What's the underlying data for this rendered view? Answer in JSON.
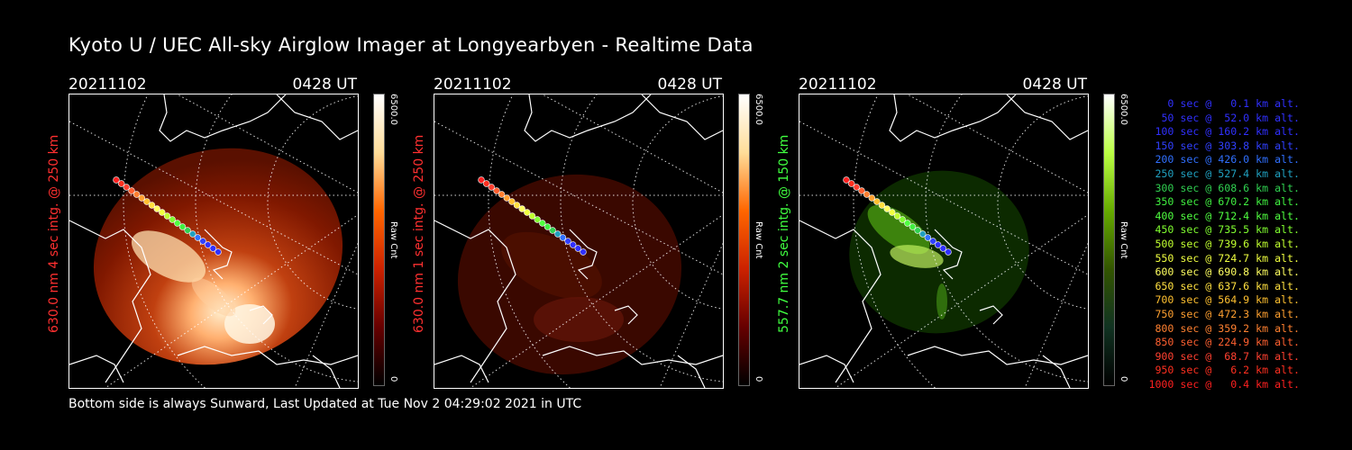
{
  "title": "Kyoto U / UEC All-sky Airglow Imager at Longyearbyen - Realtime Data",
  "panels": [
    {
      "date": "20211102",
      "time": "0428 UT",
      "ylabel": "630.0 nm 4 sec intg. @ 250 km",
      "ylabel_color": "#ff3030",
      "cbar_max": "6500.0",
      "cbar_name": "Raw Cnt",
      "cbar_min": "0",
      "cmap": "red"
    },
    {
      "date": "20211102",
      "time": "0428 UT",
      "ylabel": "630.0 nm 1 sec intg. @ 250 km",
      "ylabel_color": "#ff3030",
      "cbar_max": "6500.0",
      "cbar_name": "Raw Cnt",
      "cbar_min": "0",
      "cmap": "red"
    },
    {
      "date": "20211102",
      "time": "0428 UT",
      "ylabel": "557.7 nm 2 sec intg. @ 150 km",
      "ylabel_color": "#40ff40",
      "cbar_max": "6500.0",
      "cbar_name": "Raw Cnt",
      "cbar_min": "0",
      "cmap": "green"
    }
  ],
  "legend": [
    {
      "text": "0 sec @   0.1 km alt.",
      "color": "#3030ff"
    },
    {
      "text": "50 sec @  52.0 km alt.",
      "color": "#3030ff"
    },
    {
      "text": "100 sec @ 160.2 km alt.",
      "color": "#3030ff"
    },
    {
      "text": "150 sec @ 303.8 km alt.",
      "color": "#3040ff"
    },
    {
      "text": "200 sec @ 426.0 km alt.",
      "color": "#3070ff"
    },
    {
      "text": "250 sec @ 527.4 km alt.",
      "color": "#20a0c0"
    },
    {
      "text": "300 sec @ 608.6 km alt.",
      "color": "#30d050"
    },
    {
      "text": "350 sec @ 670.2 km alt.",
      "color": "#40f040"
    },
    {
      "text": "400 sec @ 712.4 km alt.",
      "color": "#50ff40"
    },
    {
      "text": "450 sec @ 735.5 km alt.",
      "color": "#80ff30"
    },
    {
      "text": "500 sec @ 739.6 km alt.",
      "color": "#c0ff30"
    },
    {
      "text": "550 sec @ 724.7 km alt.",
      "color": "#f0ff40"
    },
    {
      "text": "600 sec @ 690.8 km alt.",
      "color": "#ffff60"
    },
    {
      "text": "650 sec @ 637.6 km alt.",
      "color": "#ffe040"
    },
    {
      "text": "700 sec @ 564.9 km alt.",
      "color": "#ffc030"
    },
    {
      "text": "750 sec @ 472.3 km alt.",
      "color": "#ffa030"
    },
    {
      "text": "800 sec @ 359.2 km alt.",
      "color": "#ff8030"
    },
    {
      "text": "850 sec @ 224.9 km alt.",
      "color": "#ff6030"
    },
    {
      "text": "900 sec @  68.7 km alt.",
      "color": "#ff4030"
    },
    {
      "text": "950 sec @   6.2 km alt.",
      "color": "#ff3020"
    },
    {
      "text": "1000 sec @   0.4 km alt.",
      "color": "#ff2020"
    }
  ],
  "footer": "Bottom side is always Sunward, Last Updated at Tue Nov  2 04:29:02 2021 in UTC"
}
